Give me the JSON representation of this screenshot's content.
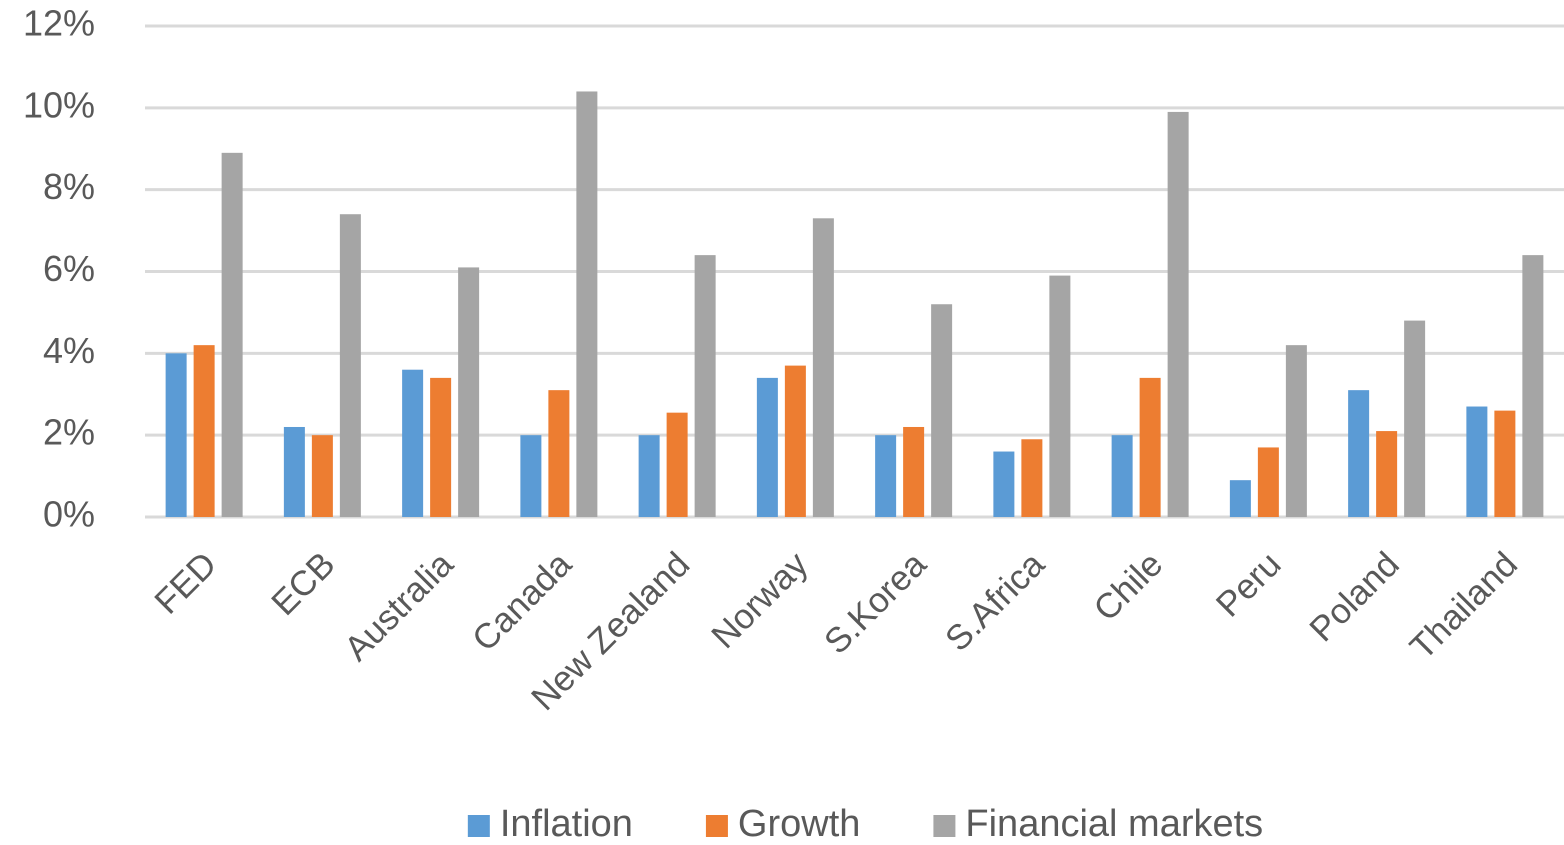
{
  "chart_data": {
    "type": "bar",
    "categories": [
      "FED",
      "ECB",
      "Australia",
      "Canada",
      "New Zealand",
      "Norway",
      "S.Korea",
      "S.Africa",
      "Chile",
      "Peru",
      "Poland",
      "Thailand"
    ],
    "series": [
      {
        "name": "Inflation",
        "color": "#5b9bd5",
        "values": [
          4.0,
          2.2,
          3.6,
          2.0,
          2.0,
          3.4,
          2.0,
          1.6,
          2.0,
          0.9,
          3.1,
          2.7
        ]
      },
      {
        "name": "Growth",
        "color": "#ed7d31",
        "values": [
          4.2,
          2.0,
          3.4,
          3.1,
          2.55,
          3.7,
          2.2,
          1.9,
          3.4,
          1.7,
          2.1,
          2.6
        ]
      },
      {
        "name": "Financial markets",
        "color": "#a5a5a5",
        "values": [
          8.9,
          7.4,
          6.1,
          10.4,
          6.4,
          7.3,
          5.2,
          5.9,
          9.9,
          4.2,
          4.8,
          6.4
        ]
      }
    ],
    "ylim": [
      0,
      12
    ],
    "yticks": [
      {
        "value": 0,
        "label": "0%"
      },
      {
        "value": 2,
        "label": "2%"
      },
      {
        "value": 4,
        "label": "4%"
      },
      {
        "value": 6,
        "label": "6%"
      },
      {
        "value": 8,
        "label": "8%"
      },
      {
        "value": 10,
        "label": "10%"
      },
      {
        "value": 12,
        "label": "12%"
      }
    ],
    "grid": true,
    "legend": "bottom"
  }
}
